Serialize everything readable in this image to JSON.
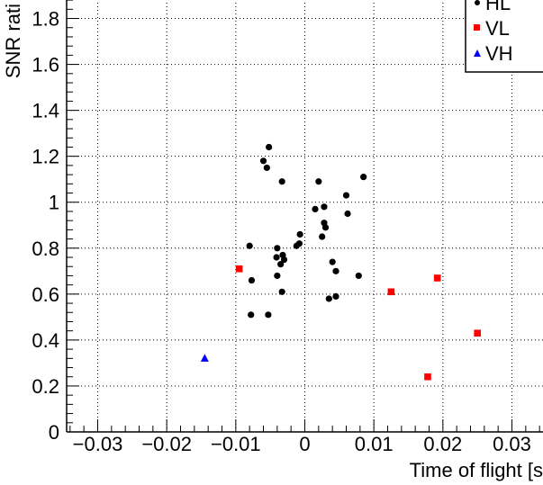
{
  "chart_data": {
    "type": "scatter",
    "xlabel": "Time of flight [s",
    "ylabel": "SNR rati",
    "xlim": [
      -0.0345,
      0.0345
    ],
    "ylim": [
      0,
      1.9
    ],
    "x_ticks": [
      {
        "value": -0.03,
        "label": "−0.03"
      },
      {
        "value": -0.02,
        "label": "−0.02"
      },
      {
        "value": -0.01,
        "label": "−0.01"
      },
      {
        "value": 0,
        "label": "0"
      },
      {
        "value": 0.01,
        "label": "0.01"
      },
      {
        "value": 0.02,
        "label": "0.02"
      },
      {
        "value": 0.03,
        "label": "0.03"
      }
    ],
    "y_ticks": [
      {
        "value": 0,
        "label": "0"
      },
      {
        "value": 0.2,
        "label": "0.2"
      },
      {
        "value": 0.4,
        "label": "0.4"
      },
      {
        "value": 0.6,
        "label": "0.6"
      },
      {
        "value": 0.8,
        "label": "0.8"
      },
      {
        "value": 1,
        "label": "1"
      },
      {
        "value": 1.2,
        "label": "1.2"
      },
      {
        "value": 1.4,
        "label": "1.4"
      },
      {
        "value": 1.6,
        "label": "1.6"
      },
      {
        "value": 1.8,
        "label": "1.8"
      }
    ],
    "grid": true,
    "legend_position": "top-right",
    "series": [
      {
        "name": "HL",
        "marker": "circle",
        "color": "#000000",
        "points": [
          {
            "x": -0.008,
            "y": 0.81
          },
          {
            "x": -0.0077,
            "y": 0.66
          },
          {
            "x": -0.0078,
            "y": 0.51
          },
          {
            "x": -0.006,
            "y": 1.18
          },
          {
            "x": -0.0055,
            "y": 1.15
          },
          {
            "x": -0.0052,
            "y": 1.24
          },
          {
            "x": -0.0053,
            "y": 0.51
          },
          {
            "x": -0.004,
            "y": 0.8
          },
          {
            "x": -0.0041,
            "y": 0.76
          },
          {
            "x": -0.004,
            "y": 0.68
          },
          {
            "x": -0.0035,
            "y": 0.73
          },
          {
            "x": -0.0033,
            "y": 1.09
          },
          {
            "x": -0.0032,
            "y": 0.77
          },
          {
            "x": -0.003,
            "y": 0.75
          },
          {
            "x": -0.0033,
            "y": 0.61
          },
          {
            "x": -0.0012,
            "y": 0.81
          },
          {
            "x": -0.0008,
            "y": 0.82
          },
          {
            "x": -0.0007,
            "y": 0.86
          },
          {
            "x": 0.0015,
            "y": 0.97
          },
          {
            "x": 0.002,
            "y": 1.09
          },
          {
            "x": 0.0025,
            "y": 0.85
          },
          {
            "x": 0.0028,
            "y": 0.98
          },
          {
            "x": 0.0028,
            "y": 0.91
          },
          {
            "x": 0.003,
            "y": 0.89
          },
          {
            "x": 0.0035,
            "y": 0.58
          },
          {
            "x": 0.004,
            "y": 0.74
          },
          {
            "x": 0.0045,
            "y": 0.7
          },
          {
            "x": 0.0045,
            "y": 0.59
          },
          {
            "x": 0.006,
            "y": 1.03
          },
          {
            "x": 0.0062,
            "y": 0.95
          },
          {
            "x": 0.0078,
            "y": 0.68
          },
          {
            "x": 0.0085,
            "y": 1.11
          }
        ]
      },
      {
        "name": "VL",
        "marker": "square",
        "color": "#ff0000",
        "points": [
          {
            "x": -0.0095,
            "y": 0.71
          },
          {
            "x": 0.0125,
            "y": 0.61
          },
          {
            "x": 0.0178,
            "y": 0.24
          },
          {
            "x": 0.0192,
            "y": 0.67
          },
          {
            "x": 0.025,
            "y": 0.43
          }
        ]
      },
      {
        "name": "VH",
        "marker": "triangle",
        "color": "#0000ff",
        "points": [
          {
            "x": -0.0145,
            "y": 0.32
          }
        ]
      }
    ]
  }
}
